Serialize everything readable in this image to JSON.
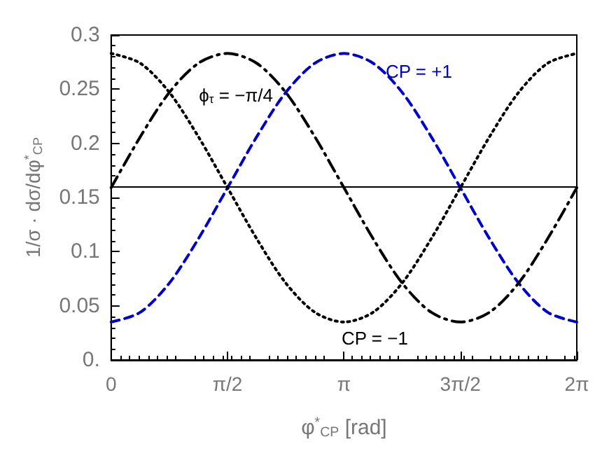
{
  "chart_data": {
    "type": "line",
    "xlabel": "φ$^{*}$$_{CP}$ [rad]",
    "ylabel": "1/σ · dσ/dφ$^{*}$$_{CP}$",
    "x": [
      0,
      0.3927,
      0.7854,
      1.1781,
      1.5708,
      1.9635,
      2.3562,
      2.7489,
      3.1416,
      3.5343,
      3.927,
      4.3197,
      4.7124,
      5.1051,
      5.4978,
      5.8905,
      6.2832
    ],
    "series": [
      {
        "name": "CP = +1",
        "color": "#0000cc",
        "line_style": "dashed",
        "values": [
          0.035,
          0.044,
          0.071,
          0.112,
          0.159,
          0.206,
          0.247,
          0.274,
          0.283,
          0.274,
          0.247,
          0.206,
          0.159,
          0.112,
          0.071,
          0.044,
          0.035
        ]
      },
      {
        "name": "CP = −1",
        "color": "#000000",
        "line_style": "dotted",
        "values": [
          0.283,
          0.274,
          0.247,
          0.206,
          0.159,
          0.112,
          0.071,
          0.044,
          0.035,
          0.044,
          0.071,
          0.112,
          0.159,
          0.206,
          0.247,
          0.274,
          0.283
        ]
      },
      {
        "name": "ϕ$_{τ}$ = −π/4",
        "color": "#000000",
        "line_style": "dashdot",
        "values": [
          0.159,
          0.206,
          0.247,
          0.274,
          0.283,
          0.274,
          0.247,
          0.206,
          0.159,
          0.112,
          0.071,
          0.044,
          0.035,
          0.044,
          0.071,
          0.112,
          0.159
        ]
      }
    ],
    "xlim": [
      0,
      6.2832
    ],
    "xticks": [
      0,
      {
        "value": 1.5708,
        "label": "π/2"
      },
      {
        "value": 3.1416,
        "label": "π"
      },
      {
        "value": 4.7124,
        "label": "3π/2"
      },
      {
        "value": 6.2832,
        "label": "2π"
      }
    ],
    "ylim": [
      0,
      0.3
    ],
    "yticks": [
      {
        "value": 0,
        "label": "0."
      },
      0.05,
      0.1,
      0.15,
      0.2,
      0.25,
      0.3
    ],
    "ref_lines": [
      {
        "axis": "y",
        "value": 0.159,
        "color": "#000000",
        "line_style": "solid"
      }
    ],
    "grid": false,
    "legend": false,
    "marker": "none"
  }
}
